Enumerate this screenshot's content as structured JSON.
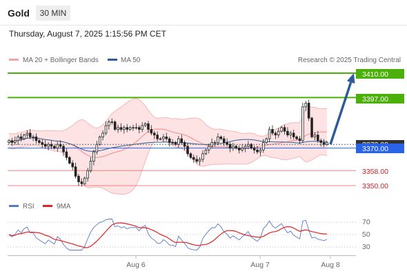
{
  "header": {
    "title": "Gold",
    "timeframe": "30 MIN"
  },
  "datetime": "Thursday, August 7, 2025 1:15:56 PM CET",
  "price_chart": {
    "legend": [
      {
        "label": "MA 20 + Bollinger Bands",
        "color": "#f5a3a3"
      },
      {
        "label": "MA 50",
        "color": "#2e5c9a"
      }
    ],
    "credit": "Research © 2025 Trading Central",
    "current_price_label": "3372.00",
    "pivot_label": "3370.00",
    "resistances": [
      "3410.00",
      "3397.00"
    ],
    "supports": [
      "3358.00",
      "3350.00"
    ]
  },
  "rsi_chart": {
    "legend": [
      {
        "label": "RSI",
        "color": "#5577cc"
      },
      {
        "label": "9MA",
        "color": "#dd2222"
      }
    ],
    "levels": [
      "70",
      "50",
      "30"
    ]
  },
  "x_axis": {
    "labels": [
      "Aug 6",
      "Aug 7",
      "Aug 8"
    ]
  },
  "chart_data": [
    {
      "type": "candlestick",
      "instrument": "Gold",
      "timeframe": "30 MIN",
      "ylim": [
        3348,
        3414
      ],
      "levels": [
        {
          "label": "3410.00",
          "value": 3410,
          "kind": "resistance"
        },
        {
          "label": "3397.00",
          "value": 3397,
          "kind": "resistance"
        },
        {
          "label": "3372.00",
          "value": 3372,
          "kind": "last-price"
        },
        {
          "label": "3370.00",
          "value": 3370,
          "kind": "pivot"
        },
        {
          "label": "3358.00",
          "value": 3358,
          "kind": "support"
        },
        {
          "label": "3350.00",
          "value": 3350,
          "kind": "support"
        }
      ],
      "x_ticks": [
        "Aug 6",
        "Aug 7",
        "Aug 8"
      ],
      "projection": {
        "from": 3372,
        "to": 3410
      },
      "close_path": [
        3374,
        3373,
        3374,
        3376,
        3375,
        3377,
        3378,
        3376,
        3376,
        3374,
        3373,
        3372,
        3371,
        3372,
        3371,
        3370,
        3372,
        3371,
        3368,
        3365,
        3362,
        3360,
        3355,
        3352,
        3351,
        3354,
        3358,
        3363,
        3368,
        3372,
        3376,
        3378,
        3382,
        3384,
        3384,
        3380,
        3381,
        3380,
        3381,
        3380,
        3381,
        3381,
        3381,
        3380,
        3382,
        3383,
        3380,
        3378,
        3377,
        3375,
        3375,
        3376,
        3375,
        3373,
        3373,
        3372,
        3375,
        3373,
        3371,
        3367,
        3365,
        3364,
        3363,
        3364,
        3367,
        3369,
        3371,
        3373,
        3373,
        3376,
        3375,
        3373,
        3372,
        3370,
        3371,
        3370,
        3369,
        3370,
        3371,
        3372,
        3370,
        3369,
        3368,
        3369,
        3373,
        3375,
        3380,
        3378,
        3377,
        3379,
        3381,
        3379,
        3377,
        3378,
        3376,
        3375,
        3374,
        3392,
        3394,
        3386,
        3376,
        3377,
        3374,
        3373,
        3372,
        3373
      ]
    },
    {
      "type": "line",
      "name": "RSI",
      "levels": [
        70,
        50,
        30
      ],
      "ylim": [
        25,
        75
      ]
    }
  ]
}
